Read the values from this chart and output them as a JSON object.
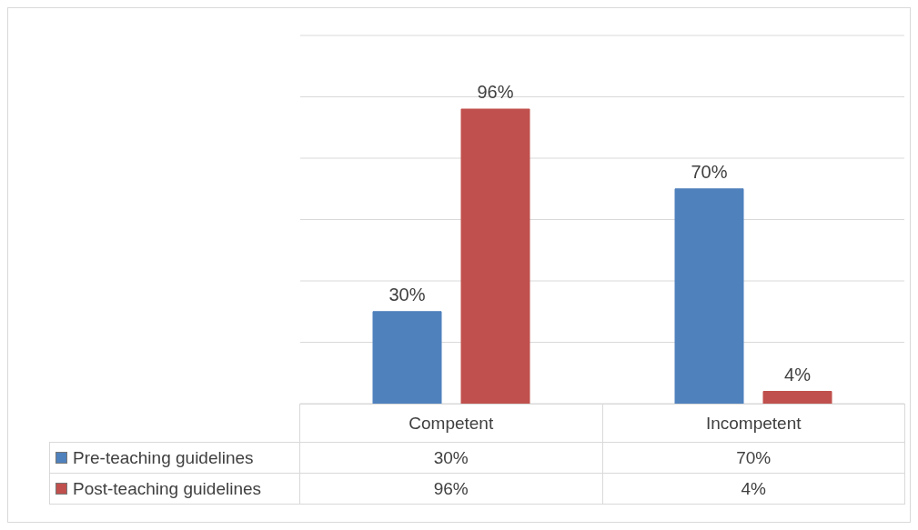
{
  "chart_data": {
    "type": "bar",
    "categories": [
      "Competent",
      "Incompetent"
    ],
    "series": [
      {
        "name": "Pre-teaching guidelines",
        "color": "#4f81bd",
        "values": [
          30,
          70
        ],
        "value_labels": [
          "30%",
          "70%"
        ]
      },
      {
        "name": "Post-teaching guidelines",
        "color": "#c0504d",
        "values": [
          96,
          4
        ],
        "value_labels": [
          "96%",
          "4%"
        ]
      }
    ],
    "ylim": [
      0,
      120
    ],
    "tick_labels": "x",
    "grid": "y",
    "legend": "bottom"
  }
}
